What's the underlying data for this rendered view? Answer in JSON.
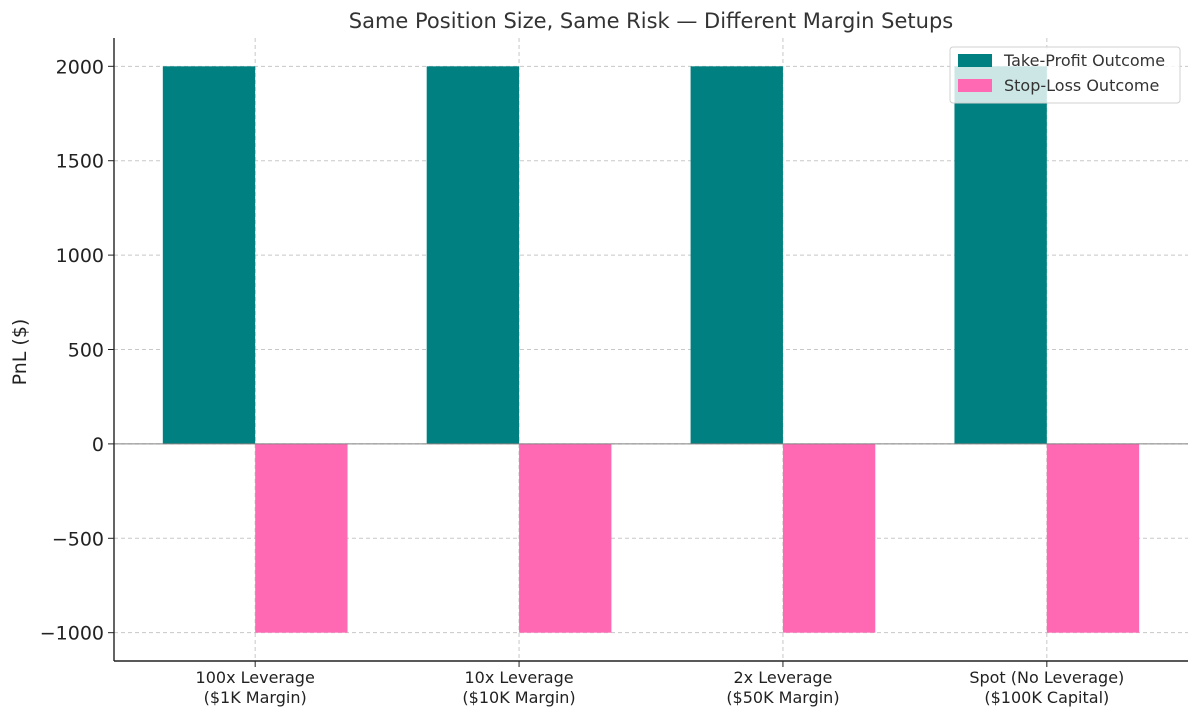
{
  "chart_data": {
    "type": "bar",
    "title": "Same Position Size, Same Risk — Different Margin Setups",
    "xlabel": "",
    "ylabel": "PnL ($)",
    "ylim": [
      -1150,
      2150
    ],
    "yticks": [
      -1000,
      -500,
      0,
      500,
      1000,
      1500,
      2000
    ],
    "ytick_labels": [
      "−1000",
      "−500",
      "0",
      "500",
      "1000",
      "1500",
      "2000"
    ],
    "categories": [
      [
        "100x Leverage",
        "($1K Margin)"
      ],
      [
        "10x Leverage",
        "($10K Margin)"
      ],
      [
        "2x Leverage",
        "($50K Margin)"
      ],
      [
        "Spot (No Leverage)",
        "($100K Capital)"
      ]
    ],
    "series": [
      {
        "name": "Take-Profit Outcome",
        "color": "#008080",
        "values": [
          2000,
          2000,
          2000,
          2000
        ]
      },
      {
        "name": "Stop-Loss Outcome",
        "color": "#ff69b4",
        "values": [
          -1000,
          -1000,
          -1000,
          -1000
        ]
      }
    ],
    "grid": true,
    "legend_position": "top-right"
  }
}
